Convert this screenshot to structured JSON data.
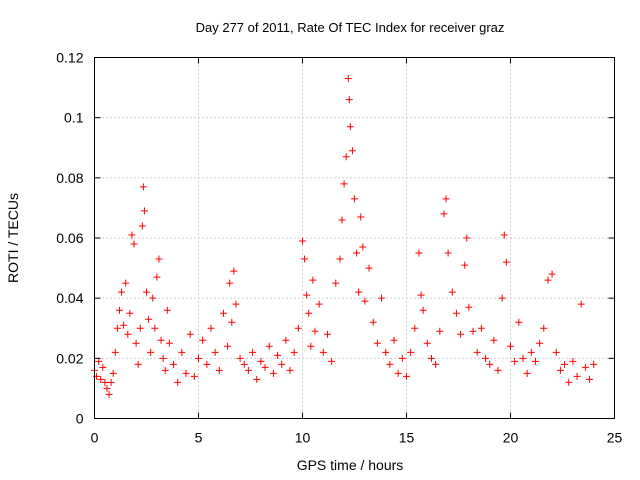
{
  "chart_data": {
    "type": "scatter",
    "title": "Day 277 of 2011, Rate Of TEC Index for receiver graz",
    "xlabel": "GPS time / hours",
    "ylabel": "ROTI / TECUs",
    "xlim": [
      0,
      25
    ],
    "ylim": [
      0,
      0.12
    ],
    "xticks": [
      0,
      5,
      10,
      15,
      20,
      25
    ],
    "yticks": [
      0,
      0.02,
      0.04,
      0.06,
      0.08,
      0.1,
      0.12
    ],
    "xtick_labels": [
      "0",
      "5",
      "10",
      "15",
      "20",
      "25"
    ],
    "ytick_labels": [
      "0",
      "0.02",
      "0.04",
      "0.06",
      "0.08",
      "0.1",
      "0.12"
    ],
    "grid": true,
    "marker": "plus",
    "series_color": "#ff0000",
    "series": [
      {
        "points": [
          [
            0.0,
            0.016
          ],
          [
            0.1,
            0.014
          ],
          [
            0.2,
            0.019
          ],
          [
            0.3,
            0.013
          ],
          [
            0.4,
            0.017
          ],
          [
            0.5,
            0.012
          ],
          [
            0.6,
            0.01
          ],
          [
            0.7,
            0.008
          ],
          [
            0.8,
            0.012
          ],
          [
            0.9,
            0.015
          ],
          [
            1.0,
            0.022
          ],
          [
            1.1,
            0.03
          ],
          [
            1.2,
            0.036
          ],
          [
            1.3,
            0.042
          ],
          [
            1.4,
            0.031
          ],
          [
            1.5,
            0.045
          ],
          [
            1.6,
            0.028
          ],
          [
            1.7,
            0.035
          ],
          [
            1.8,
            0.061
          ],
          [
            1.9,
            0.058
          ],
          [
            2.0,
            0.025
          ],
          [
            2.1,
            0.018
          ],
          [
            2.2,
            0.03
          ],
          [
            2.3,
            0.064
          ],
          [
            2.35,
            0.077
          ],
          [
            2.4,
            0.069
          ],
          [
            2.5,
            0.042
          ],
          [
            2.6,
            0.033
          ],
          [
            2.7,
            0.022
          ],
          [
            2.8,
            0.04
          ],
          [
            2.9,
            0.03
          ],
          [
            3.0,
            0.047
          ],
          [
            3.1,
            0.053
          ],
          [
            3.2,
            0.026
          ],
          [
            3.3,
            0.02
          ],
          [
            3.4,
            0.016
          ],
          [
            3.5,
            0.036
          ],
          [
            3.6,
            0.025
          ],
          [
            3.8,
            0.018
          ],
          [
            4.0,
            0.012
          ],
          [
            4.2,
            0.022
          ],
          [
            4.4,
            0.015
          ],
          [
            4.6,
            0.028
          ],
          [
            4.8,
            0.014
          ],
          [
            5.0,
            0.02
          ],
          [
            5.2,
            0.026
          ],
          [
            5.4,
            0.018
          ],
          [
            5.6,
            0.03
          ],
          [
            5.8,
            0.022
          ],
          [
            6.0,
            0.016
          ],
          [
            6.2,
            0.035
          ],
          [
            6.4,
            0.024
          ],
          [
            6.5,
            0.045
          ],
          [
            6.6,
            0.032
          ],
          [
            6.7,
            0.049
          ],
          [
            6.8,
            0.038
          ],
          [
            7.0,
            0.02
          ],
          [
            7.2,
            0.018
          ],
          [
            7.4,
            0.016
          ],
          [
            7.6,
            0.022
          ],
          [
            7.8,
            0.013
          ],
          [
            8.0,
            0.019
          ],
          [
            8.2,
            0.017
          ],
          [
            8.4,
            0.024
          ],
          [
            8.6,
            0.015
          ],
          [
            8.8,
            0.021
          ],
          [
            9.0,
            0.018
          ],
          [
            9.2,
            0.026
          ],
          [
            9.4,
            0.016
          ],
          [
            9.6,
            0.022
          ],
          [
            9.8,
            0.03
          ],
          [
            10.0,
            0.059
          ],
          [
            10.1,
            0.053
          ],
          [
            10.2,
            0.041
          ],
          [
            10.3,
            0.035
          ],
          [
            10.4,
            0.024
          ],
          [
            10.5,
            0.046
          ],
          [
            10.6,
            0.029
          ],
          [
            10.8,
            0.038
          ],
          [
            11.0,
            0.022
          ],
          [
            11.2,
            0.028
          ],
          [
            11.4,
            0.019
          ],
          [
            11.6,
            0.045
          ],
          [
            11.8,
            0.053
          ],
          [
            11.9,
            0.066
          ],
          [
            12.0,
            0.078
          ],
          [
            12.1,
            0.087
          ],
          [
            12.2,
            0.113
          ],
          [
            12.25,
            0.106
          ],
          [
            12.3,
            0.097
          ],
          [
            12.4,
            0.089
          ],
          [
            12.5,
            0.073
          ],
          [
            12.6,
            0.055
          ],
          [
            12.7,
            0.042
          ],
          [
            12.8,
            0.067
          ],
          [
            12.9,
            0.057
          ],
          [
            13.0,
            0.039
          ],
          [
            13.2,
            0.05
          ],
          [
            13.4,
            0.032
          ],
          [
            13.6,
            0.025
          ],
          [
            13.8,
            0.04
          ],
          [
            14.0,
            0.022
          ],
          [
            14.2,
            0.018
          ],
          [
            14.4,
            0.026
          ],
          [
            14.6,
            0.015
          ],
          [
            14.8,
            0.02
          ],
          [
            15.0,
            0.014
          ],
          [
            15.2,
            0.022
          ],
          [
            15.4,
            0.03
          ],
          [
            15.6,
            0.055
          ],
          [
            15.7,
            0.041
          ],
          [
            15.8,
            0.036
          ],
          [
            16.0,
            0.025
          ],
          [
            16.2,
            0.02
          ],
          [
            16.4,
            0.018
          ],
          [
            16.6,
            0.029
          ],
          [
            16.8,
            0.068
          ],
          [
            16.9,
            0.073
          ],
          [
            17.0,
            0.055
          ],
          [
            17.2,
            0.042
          ],
          [
            17.4,
            0.035
          ],
          [
            17.6,
            0.028
          ],
          [
            17.8,
            0.051
          ],
          [
            17.9,
            0.06
          ],
          [
            18.0,
            0.037
          ],
          [
            18.2,
            0.029
          ],
          [
            18.4,
            0.022
          ],
          [
            18.6,
            0.03
          ],
          [
            18.8,
            0.02
          ],
          [
            19.0,
            0.018
          ],
          [
            19.2,
            0.026
          ],
          [
            19.4,
            0.016
          ],
          [
            19.6,
            0.04
          ],
          [
            19.7,
            0.061
          ],
          [
            19.8,
            0.052
          ],
          [
            20.0,
            0.024
          ],
          [
            20.2,
            0.019
          ],
          [
            20.4,
            0.032
          ],
          [
            20.6,
            0.02
          ],
          [
            20.8,
            0.015
          ],
          [
            21.0,
            0.022
          ],
          [
            21.2,
            0.019
          ],
          [
            21.4,
            0.025
          ],
          [
            21.6,
            0.03
          ],
          [
            21.8,
            0.046
          ],
          [
            22.0,
            0.048
          ],
          [
            22.2,
            0.022
          ],
          [
            22.4,
            0.016
          ],
          [
            22.6,
            0.018
          ],
          [
            22.8,
            0.012
          ],
          [
            23.0,
            0.019
          ],
          [
            23.2,
            0.014
          ],
          [
            23.4,
            0.038
          ],
          [
            23.6,
            0.017
          ],
          [
            23.8,
            0.013
          ],
          [
            24.0,
            0.018
          ]
        ]
      }
    ]
  }
}
